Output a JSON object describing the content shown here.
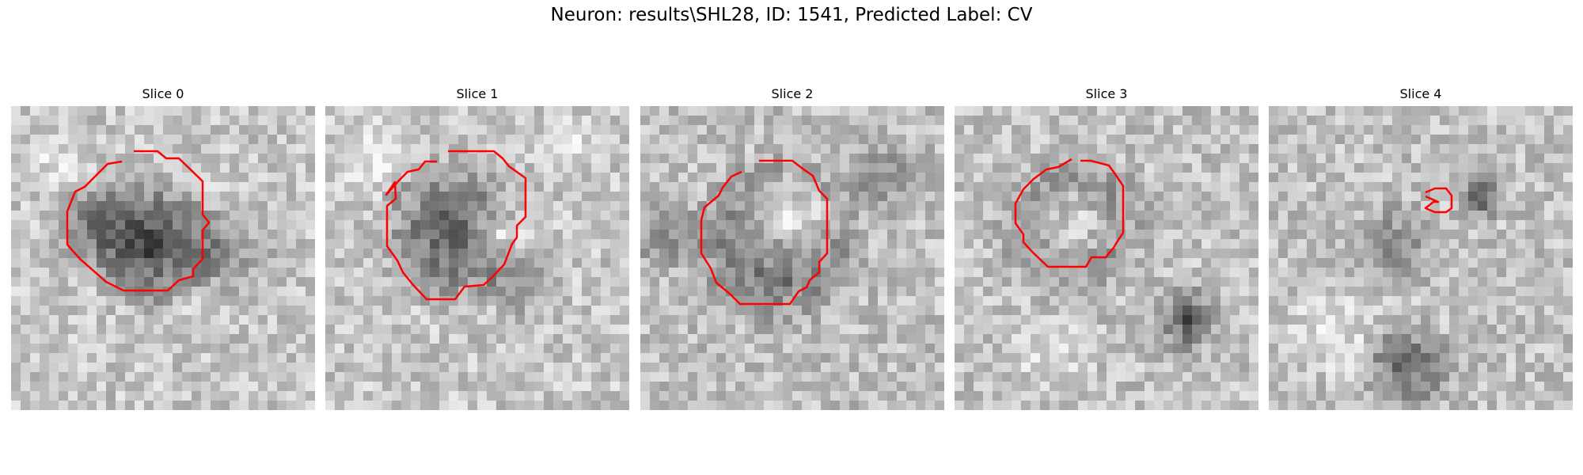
{
  "figure": {
    "title": "Neuron: results\\SHL28, ID: 1541, Predicted Label: CV"
  },
  "colors": {
    "contour": "#ff0000",
    "background": "#ffffff"
  },
  "slices": [
    {
      "title": "Slice 0"
    },
    {
      "title": "Slice 1"
    },
    {
      "title": "Slice 2"
    },
    {
      "title": "Slice 3"
    },
    {
      "title": "Slice 4"
    }
  ]
}
